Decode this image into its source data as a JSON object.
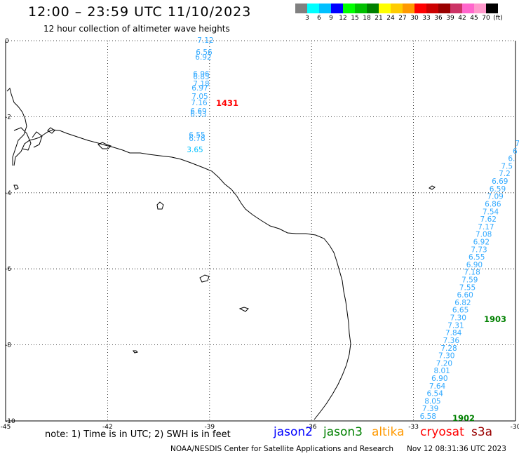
{
  "header": {
    "title": "12:00 – 23:59 UTC 11/10/2023",
    "subtitle": "12 hour collection of altimeter wave heights"
  },
  "legend": {
    "colors": [
      "#808080",
      "#00ffff",
      "#00c0ff",
      "#0000ff",
      "#00ff00",
      "#00c000",
      "#008000",
      "#ffff00",
      "#ffcc00",
      "#ff9900",
      "#ff0000",
      "#cc0000",
      "#990000",
      "#cc3366",
      "#ff66cc",
      "#ff99cc",
      "#000000"
    ],
    "labels": [
      "3",
      "6",
      "9",
      "12",
      "15",
      "18",
      "21",
      "24",
      "27",
      "30",
      "33",
      "36",
      "39",
      "42",
      "45",
      "70",
      "(ft)"
    ]
  },
  "axes": {
    "x_ticks": [
      "-45",
      "-42",
      "-39",
      "-36",
      "-33",
      "-30"
    ],
    "y_ticks": [
      "0",
      "-2",
      "-4",
      "-6",
      "-8",
      "-10"
    ]
  },
  "tracks": [
    {
      "name": "center",
      "color": "#33aaff",
      "values": [
        "7.12",
        "6.56",
        "6.92",
        "6.96",
        "6.85",
        "7.18",
        "6.97",
        "7.05",
        "7.16",
        "6.69",
        "6.53",
        "6.55",
        "6.78"
      ]
    },
    {
      "name": "center-low",
      "color": "#00c0ff",
      "values": [
        "3.65"
      ]
    },
    {
      "name": "east",
      "color": "#33aaff",
      "values": [
        "7",
        "6",
        "6.",
        "7.5",
        "7.2",
        "6.69",
        "6.59",
        "7.09",
        "6.86",
        "7.54",
        "7.62",
        "7.17",
        "7.08",
        "6.92",
        "7.73",
        "6.55",
        "6.90",
        "7.18",
        "7.59",
        "7.55",
        "6.60",
        "6.82",
        "6.65",
        "7.30",
        "7.31",
        "7.84",
        "7.36",
        "7.28",
        "7.30",
        "7.20",
        "8.01",
        "6.90",
        "7.64",
        "6.54",
        "8.05",
        "7.39",
        "6.58"
      ]
    }
  ],
  "time_labels": [
    {
      "text": "1431",
      "color": "#ff0000"
    },
    {
      "text": "1903",
      "color": "#008000"
    },
    {
      "text": "1902",
      "color": "#008000"
    }
  ],
  "footer": {
    "note": "note:  1) Time is in UTC;  2) SWH is in feet",
    "satellites": [
      {
        "name": "jason2",
        "color": "#0000ff"
      },
      {
        "name": "jason3",
        "color": "#008000"
      },
      {
        "name": "altika",
        "color": "#ff9900"
      },
      {
        "name": "cryosat",
        "color": "#ff0000"
      },
      {
        "name": "s3a",
        "color": "#990000"
      }
    ],
    "credit": "NOAA/NESDIS Center for Satellite Applications and Research",
    "timestamp": "Nov 12 08:31:36 UTC 2023"
  }
}
